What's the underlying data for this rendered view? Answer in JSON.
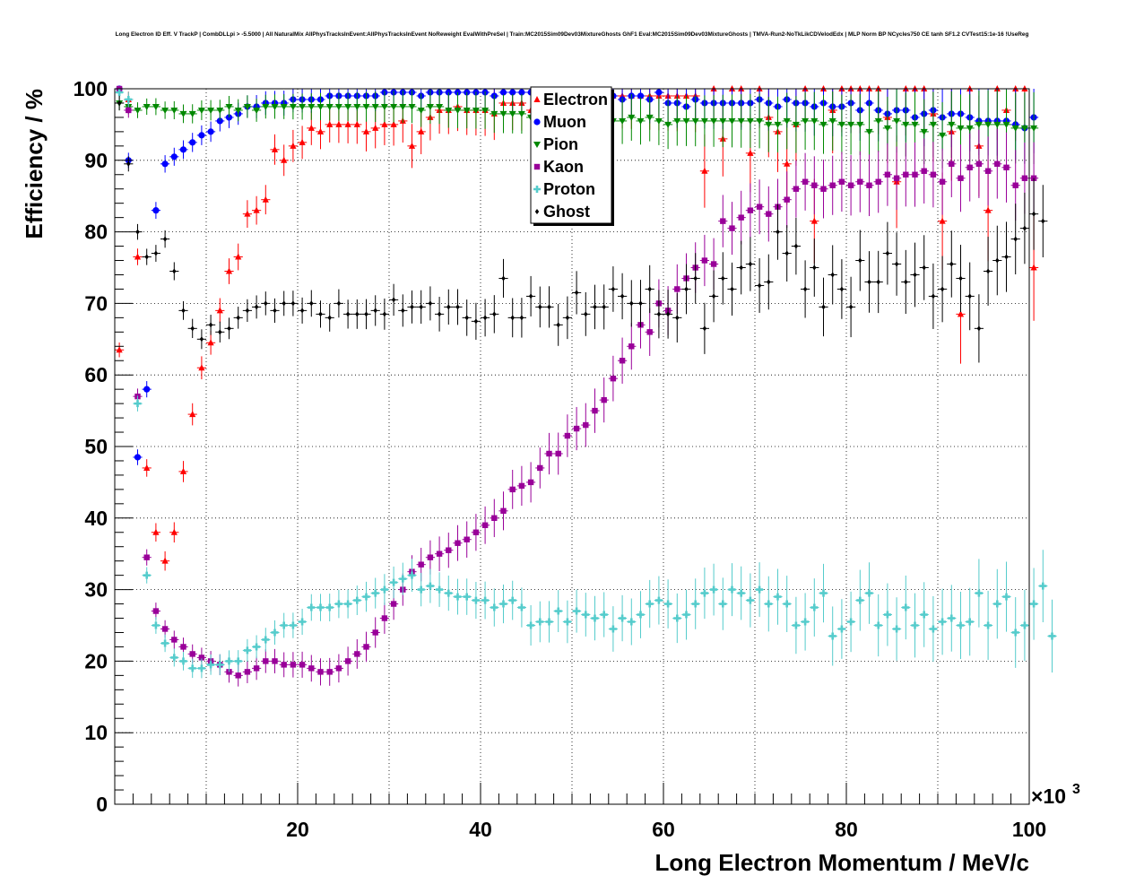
{
  "chart_data": {
    "type": "scatter",
    "title": "Long Electron ID Eff. V TrackP | CombDLLpi > -5.5000 | All NaturalMix AllPhysTracksInEvent:AllPhysTracksInEvent NoReweight EvalWithPreSel | Train:MC2015Sim09Dev03MixtureGhosts GhF1 Eval:MC2015Sim09Dev03MixtureGhosts | TMVA-Run2-NoTkLikCDVelodEdx | MLP Norm BP NCycles750 CE tanh SF1.2 CVTest15:1e-16 !UseReg",
    "xlabel": "Long Electron Momentum / MeV/c",
    "ylabel": "Efficiency / %",
    "x_multiplier": "×10",
    "x_multiplier_exp": "3",
    "xlim": [
      0,
      100
    ],
    "ylim": [
      0,
      100
    ],
    "x_ticks": [
      "20",
      "40",
      "60",
      "80",
      "100"
    ],
    "y_ticks": [
      "0",
      "10",
      "20",
      "30",
      "40",
      "50",
      "60",
      "70",
      "80",
      "90",
      "100"
    ],
    "grid": true,
    "legend_position": "top-center",
    "x_step": 1,
    "x_start": 0.5,
    "series": [
      {
        "name": "Electron",
        "color": "#ff0000",
        "marker": "triangle-up",
        "values": [
          63.5,
          98.5,
          76.5,
          47,
          38,
          34,
          38,
          46.5,
          54.5,
          61,
          64.5,
          69,
          74.5,
          76.5,
          82.5,
          83,
          84.5,
          91.5,
          90,
          92,
          92.5,
          94.5,
          94,
          95,
          95,
          95,
          95,
          94,
          94.5,
          95,
          95,
          95.5,
          92,
          94,
          96,
          97,
          97,
          97.5,
          97,
          97,
          97,
          96.5,
          98,
          98,
          98,
          97,
          97,
          97,
          97,
          97,
          98,
          97,
          97,
          99,
          99,
          99,
          99,
          99,
          99,
          99,
          99,
          99,
          99,
          99,
          88.5,
          100,
          93,
          100,
          100,
          91,
          100,
          96,
          94,
          89.5,
          95,
          100,
          81.5,
          100,
          97,
          100,
          100,
          100,
          100,
          100,
          96,
          87,
          100,
          100,
          100,
          96.5,
          81.5,
          94,
          68.5,
          100,
          92,
          83,
          100,
          97,
          100,
          100,
          75
        ]
      },
      {
        "name": "Muon",
        "color": "#0000ff",
        "marker": "circle",
        "values": [
          100,
          90,
          48.5,
          58,
          83,
          89.5,
          90.5,
          91.5,
          92.5,
          93.5,
          94,
          95.5,
          96,
          96.5,
          97.5,
          97.5,
          98,
          98,
          98,
          98.5,
          98.5,
          98.5,
          98.5,
          99,
          99,
          99,
          99,
          99,
          99,
          99.5,
          99.5,
          99.5,
          99.5,
          99,
          99.5,
          99.5,
          99.5,
          99.5,
          99.5,
          99.5,
          99.5,
          99,
          99.5,
          99.5,
          99.5,
          99.5,
          99.5,
          99.5,
          99,
          99,
          99.5,
          99,
          99,
          99,
          99,
          98.5,
          99,
          99,
          98.5,
          99.5,
          98,
          98,
          97.5,
          98.5,
          98,
          98,
          98,
          98,
          98,
          98,
          98.5,
          98,
          97.5,
          98.5,
          98,
          98,
          97.5,
          98,
          97.5,
          97.5,
          98,
          97,
          98,
          97,
          96.5,
          97,
          97,
          96,
          96.5,
          97,
          96,
          96.5,
          96.5,
          96,
          95.5,
          95.5,
          95.5,
          95.5,
          95,
          94.5,
          96
        ]
      },
      {
        "name": "Pion",
        "color": "#008800",
        "marker": "triangle-down",
        "values": [
          98,
          97.5,
          97,
          97.5,
          97.5,
          97,
          97,
          96.5,
          96.5,
          97,
          97,
          97,
          97.5,
          97,
          97.5,
          97,
          97.5,
          97.5,
          97.5,
          97.5,
          97.5,
          97.5,
          97.5,
          97.5,
          97.5,
          97.5,
          97.5,
          97.5,
          97.5,
          97.5,
          97.5,
          97.5,
          97.5,
          97,
          97.5,
          97.5,
          97,
          97,
          97,
          97,
          97,
          96.5,
          96.5,
          96.5,
          96.5,
          96,
          96.5,
          96.5,
          96,
          96,
          96.5,
          96,
          95.5,
          95.5,
          95.5,
          95.5,
          96,
          95.5,
          96,
          95.5,
          95,
          95.5,
          95.5,
          95.5,
          95.5,
          95.5,
          95.5,
          95.5,
          95.5,
          95.5,
          95.5,
          95,
          95,
          95.5,
          95,
          95.5,
          95.5,
          95,
          95.5,
          95,
          95,
          95,
          94,
          95.5,
          94.5,
          95.5,
          95,
          95,
          94,
          95,
          93.5,
          95,
          94.5,
          94.5,
          95,
          95,
          95,
          95,
          94.5,
          94.5,
          94.5
        ]
      },
      {
        "name": "Kaon",
        "color": "#990099",
        "marker": "square",
        "values": [
          100,
          97,
          57,
          34.5,
          27,
          24.5,
          23,
          22,
          21,
          20.5,
          20,
          19.5,
          18.5,
          18,
          18.5,
          19,
          20,
          20,
          19.5,
          19.5,
          19.5,
          19,
          18.5,
          18.5,
          19,
          20,
          21,
          22,
          24,
          26,
          28,
          30,
          32.5,
          33.5,
          34.5,
          35,
          35.5,
          36.5,
          37,
          38,
          39,
          40,
          41,
          44,
          44.5,
          45,
          47,
          49,
          49,
          51.5,
          52.5,
          53,
          55,
          56.5,
          59.5,
          62,
          64,
          67,
          66,
          70,
          69,
          72,
          73.5,
          75,
          76,
          75.5,
          81.5,
          80.5,
          82,
          83,
          83.5,
          82.5,
          83.5,
          84.5,
          86,
          87,
          86.5,
          86,
          86.5,
          87,
          86.5,
          87,
          86.5,
          87,
          88,
          87.5,
          88,
          88,
          88.5,
          88,
          87,
          89.5,
          87.5,
          89,
          89.5,
          88.5,
          89.5,
          89,
          86.5,
          87.5,
          87.5
        ]
      },
      {
        "name": "Proton",
        "color": "#55cccc",
        "marker": "cross",
        "values": [
          99.5,
          98.5,
          56,
          32,
          25,
          22.5,
          20.5,
          20,
          19,
          19,
          19.5,
          19.5,
          20,
          20,
          21.5,
          22,
          23,
          24,
          25,
          25,
          25.5,
          27.5,
          27.5,
          27.5,
          28,
          28,
          28.5,
          29,
          29.5,
          30,
          31,
          31.5,
          32,
          30,
          30.5,
          30,
          29.5,
          29,
          29,
          28.5,
          28.5,
          27.5,
          28,
          28.5,
          27.5,
          25,
          25.5,
          25.5,
          27,
          25.5,
          27,
          26.5,
          26,
          26.5,
          24.5,
          26,
          25.5,
          26.5,
          28,
          28.5,
          28,
          26,
          26.5,
          28,
          29.5,
          30,
          28,
          30,
          29.5,
          28.5,
          30,
          28,
          29,
          28,
          25,
          25.5,
          27.5,
          29.5,
          23.5,
          24.5,
          25.5,
          28.5,
          29.5,
          25,
          26.5,
          24.5,
          27.5,
          25,
          26.5,
          24.5,
          25.5,
          26,
          25,
          25.5,
          29.5,
          25,
          28,
          29,
          24,
          25,
          28,
          30.5,
          23.5
        ]
      },
      {
        "name": "Ghost",
        "color": "#000000",
        "marker": "diamond",
        "values": [
          98,
          89.5,
          80,
          76.5,
          77,
          79,
          74.5,
          69,
          66.5,
          65,
          67,
          66,
          66.5,
          68,
          69,
          69.5,
          70,
          69,
          70,
          70,
          69,
          70,
          68.5,
          68,
          70,
          68.5,
          68.5,
          68.5,
          69,
          68.5,
          70.5,
          69,
          69.5,
          69.5,
          70,
          68.5,
          69.5,
          69.5,
          68,
          67.5,
          68,
          68.5,
          73.5,
          68,
          68,
          71,
          69.5,
          69.5,
          67,
          68,
          71.5,
          68.5,
          69.5,
          69.5,
          72,
          71,
          70,
          70,
          72,
          68.5,
          68.5,
          68,
          72,
          73.5,
          66.5,
          71,
          73.5,
          72,
          75,
          75.5,
          72.5,
          73,
          80,
          77,
          78,
          72,
          75,
          69.5,
          74,
          72,
          69.5,
          76,
          73,
          73,
          77,
          75.5,
          73,
          74,
          75,
          71,
          72,
          75.5,
          73.5,
          71,
          66.5,
          74.5,
          76,
          76.5,
          79,
          80.5,
          82.5,
          81.5
        ]
      }
    ]
  }
}
